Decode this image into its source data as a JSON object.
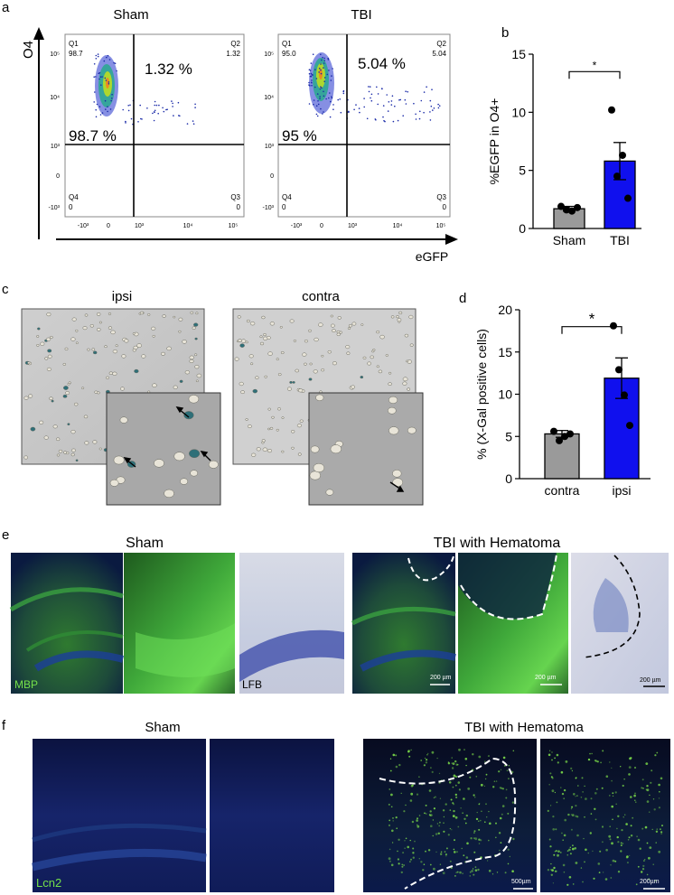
{
  "panels": {
    "a": {
      "label": "a",
      "y_axis_label": "O4",
      "x_axis_label": "eGFP",
      "plots": [
        {
          "title": "Sham",
          "q1": "Q1",
          "q1_val": "98.7",
          "q2": "Q2",
          "q2_val": "1.32",
          "q3": "Q3",
          "q3_val": "0",
          "q4": "Q4",
          "q4_val": "0",
          "big_q2": "1.32 %",
          "big_q1": "98.7 %"
        },
        {
          "title": "TBI",
          "q1": "Q1",
          "q1_val": "95.0",
          "q2": "Q2",
          "q2_val": "5.04",
          "q3": "Q3",
          "q3_val": "0",
          "q4": "Q4",
          "q4_val": "0",
          "big_q2": "5.04 %",
          "big_q1": "95 %"
        }
      ],
      "y_ticks": [
        "10⁵",
        "10⁴",
        "10³",
        "0",
        "-10³"
      ],
      "x_ticks": [
        "-10³",
        "0",
        "10³",
        "10⁴",
        "10⁵"
      ]
    },
    "b": {
      "label": "b"
    },
    "c": {
      "label": "c",
      "titles": [
        "ipsi",
        "contra"
      ]
    },
    "d": {
      "label": "d"
    },
    "e": {
      "label": "e",
      "titles": [
        "Sham",
        "TBI with Hematoma"
      ],
      "stain_labels": [
        "MBP",
        "LFB"
      ],
      "scale_bars": [
        "200 µm",
        "200 µm",
        "200 µm"
      ]
    },
    "f": {
      "label": "f",
      "titles": [
        "Sham",
        "TBI with Hematoma"
      ],
      "stain_label": "Lcn2",
      "scale_bars": [
        "500µm",
        "200µm"
      ]
    }
  },
  "chart_data": [
    {
      "type": "bar",
      "panel": "b",
      "categories": [
        "Sham",
        "TBI"
      ],
      "values": [
        1.7,
        5.8
      ],
      "errors": [
        0.2,
        1.6
      ],
      "points": [
        [
          1.9,
          1.6,
          1.5,
          1.8
        ],
        [
          10.2,
          4.5,
          6.3,
          2.6
        ]
      ],
      "colors": [
        "#9a9a9a",
        "#1010ee"
      ],
      "ylabel": "%EGFP in O4+",
      "ylim": [
        0,
        15
      ],
      "yticks": [
        0,
        5,
        10,
        15
      ],
      "significance": "*"
    },
    {
      "type": "bar",
      "panel": "d",
      "categories": [
        "contra",
        "ipsi"
      ],
      "values": [
        5.3,
        11.9
      ],
      "errors": [
        0.4,
        2.4
      ],
      "points": [
        [
          5.6,
          4.5,
          5.0,
          5.3
        ],
        [
          18.1,
          12.9,
          9.9,
          6.3
        ]
      ],
      "colors": [
        "#9a9a9a",
        "#1010ee"
      ],
      "ylabel": "% (X-Gal positive cells)",
      "ylim": [
        0,
        20
      ],
      "yticks": [
        0,
        5,
        10,
        15,
        20
      ],
      "significance": "*"
    }
  ]
}
